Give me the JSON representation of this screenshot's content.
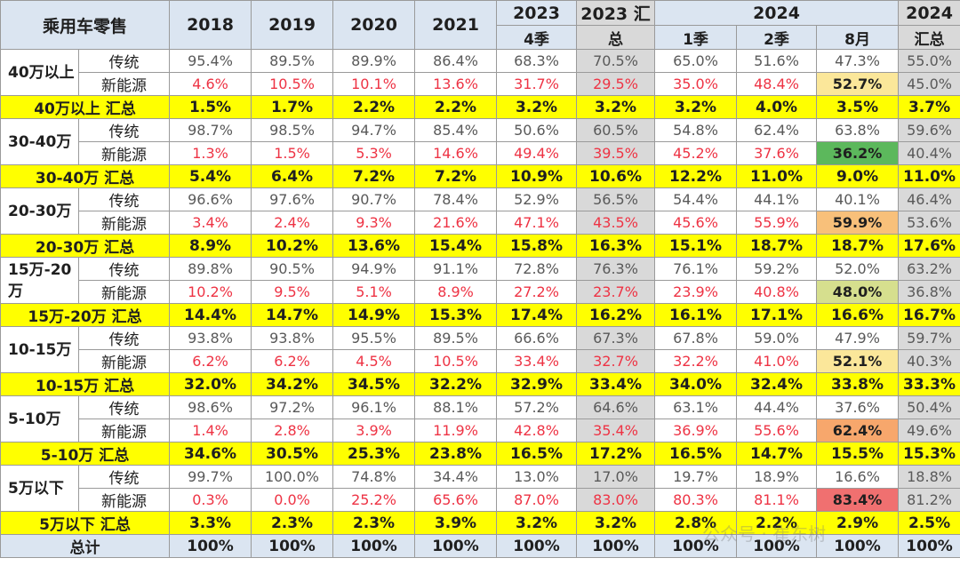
{
  "header": {
    "corner": "乘用车零售",
    "y2018": "2018",
    "y2019": "2019",
    "y2020": "2020",
    "y2021": "2021",
    "y2023_top": "2023",
    "y2023_sub": "4季",
    "y2023_total_top": "2023 汇",
    "y2023_total_sub": "总",
    "y2024_top": "2024",
    "q1": "1季",
    "q2": "2季",
    "m8": "8月",
    "y2024_total_top": "2024",
    "y2024_total_sub": "汇总"
  },
  "type_labels": {
    "trad": "传统",
    "nev": "新能源"
  },
  "colors": {
    "highlight_green": "#5cb85c",
    "highlight_orange": "#f8c07a",
    "highlight_lightyellow": "#fbe79a",
    "highlight_olive": "#d6df8e",
    "highlight_red": "#f07070",
    "highlight_amber": "#f7a76c"
  },
  "groups": [
    {
      "label": "40万以上",
      "trad": [
        "95.4%",
        "89.5%",
        "89.9%",
        "86.4%",
        "68.3%",
        "70.5%",
        "65.0%",
        "51.6%",
        "47.3%",
        "55.0%"
      ],
      "nev": [
        "4.6%",
        "10.5%",
        "10.1%",
        "13.6%",
        "31.7%",
        "29.5%",
        "35.0%",
        "48.4%",
        "52.7%",
        "45.0%"
      ],
      "sum_label": "40万以上 汇总",
      "sum": [
        "1.5%",
        "1.7%",
        "2.2%",
        "2.2%",
        "3.2%",
        "3.2%",
        "3.2%",
        "4.0%",
        "3.5%",
        "3.7%"
      ]
    },
    {
      "label": "30-40万",
      "trad": [
        "98.7%",
        "98.5%",
        "94.7%",
        "85.4%",
        "50.6%",
        "60.5%",
        "54.8%",
        "62.4%",
        "63.8%",
        "59.6%"
      ],
      "nev": [
        "1.3%",
        "1.5%",
        "5.3%",
        "14.6%",
        "49.4%",
        "39.5%",
        "45.2%",
        "37.6%",
        "36.2%",
        "40.4%"
      ],
      "sum_label": "30-40万 汇总",
      "sum": [
        "5.4%",
        "6.4%",
        "7.2%",
        "7.2%",
        "10.9%",
        "10.6%",
        "12.2%",
        "11.0%",
        "9.0%",
        "11.0%"
      ]
    },
    {
      "label": "20-30万",
      "trad": [
        "96.6%",
        "97.6%",
        "90.7%",
        "78.4%",
        "52.9%",
        "56.5%",
        "54.4%",
        "44.1%",
        "40.1%",
        "46.4%"
      ],
      "nev": [
        "3.4%",
        "2.4%",
        "9.3%",
        "21.6%",
        "47.1%",
        "43.5%",
        "45.6%",
        "55.9%",
        "59.9%",
        "53.6%"
      ],
      "sum_label": "20-30万 汇总",
      "sum": [
        "8.9%",
        "10.2%",
        "13.6%",
        "15.4%",
        "15.8%",
        "16.3%",
        "15.1%",
        "18.7%",
        "18.7%",
        "17.6%"
      ]
    },
    {
      "label": "15万-20万",
      "trad": [
        "89.8%",
        "90.5%",
        "94.9%",
        "91.1%",
        "72.8%",
        "76.3%",
        "76.1%",
        "59.2%",
        "52.0%",
        "63.2%"
      ],
      "nev": [
        "10.2%",
        "9.5%",
        "5.1%",
        "8.9%",
        "27.2%",
        "23.7%",
        "23.9%",
        "40.8%",
        "48.0%",
        "36.8%"
      ],
      "sum_label": "15万-20万 汇总",
      "sum": [
        "14.4%",
        "14.7%",
        "14.9%",
        "15.3%",
        "17.4%",
        "16.2%",
        "16.1%",
        "17.1%",
        "16.6%",
        "16.7%"
      ]
    },
    {
      "label": "10-15万",
      "trad": [
        "93.8%",
        "93.8%",
        "95.5%",
        "89.5%",
        "66.6%",
        "67.3%",
        "67.8%",
        "59.0%",
        "47.9%",
        "59.7%"
      ],
      "nev": [
        "6.2%",
        "6.2%",
        "4.5%",
        "10.5%",
        "33.4%",
        "32.7%",
        "32.2%",
        "41.0%",
        "52.1%",
        "40.3%"
      ],
      "sum_label": "10-15万 汇总",
      "sum": [
        "32.0%",
        "34.2%",
        "34.5%",
        "32.2%",
        "32.9%",
        "33.4%",
        "34.0%",
        "32.4%",
        "33.8%",
        "33.3%"
      ]
    },
    {
      "label": "5-10万",
      "trad": [
        "98.6%",
        "97.2%",
        "96.1%",
        "88.1%",
        "57.2%",
        "64.6%",
        "63.1%",
        "44.4%",
        "37.6%",
        "50.4%"
      ],
      "nev": [
        "1.4%",
        "2.8%",
        "3.9%",
        "11.9%",
        "42.8%",
        "35.4%",
        "36.9%",
        "55.6%",
        "62.4%",
        "49.6%"
      ],
      "sum_label": "5-10万 汇总",
      "sum": [
        "34.6%",
        "30.5%",
        "25.3%",
        "23.8%",
        "16.5%",
        "17.2%",
        "16.5%",
        "14.7%",
        "15.5%",
        "15.3%"
      ]
    },
    {
      "label": "5万以下",
      "trad": [
        "99.7%",
        "100.0%",
        "74.8%",
        "34.4%",
        "13.0%",
        "17.0%",
        "19.7%",
        "18.9%",
        "16.6%",
        "18.8%"
      ],
      "nev": [
        "0.3%",
        "0.0%",
        "25.2%",
        "65.6%",
        "87.0%",
        "83.0%",
        "80.3%",
        "81.1%",
        "83.4%",
        "81.2%"
      ],
      "sum_label": "5万以下 汇总",
      "sum": [
        "3.3%",
        "2.3%",
        "2.3%",
        "3.9%",
        "3.2%",
        "3.2%",
        "2.8%",
        "2.2%",
        "2.9%",
        "2.5%"
      ]
    }
  ],
  "total": {
    "label": "总计",
    "values": [
      "100%",
      "100%",
      "100%",
      "100%",
      "100%",
      "100%",
      "100%",
      "100%",
      "100%",
      "100%"
    ]
  },
  "watermark": "公众号 · 崔东树"
}
